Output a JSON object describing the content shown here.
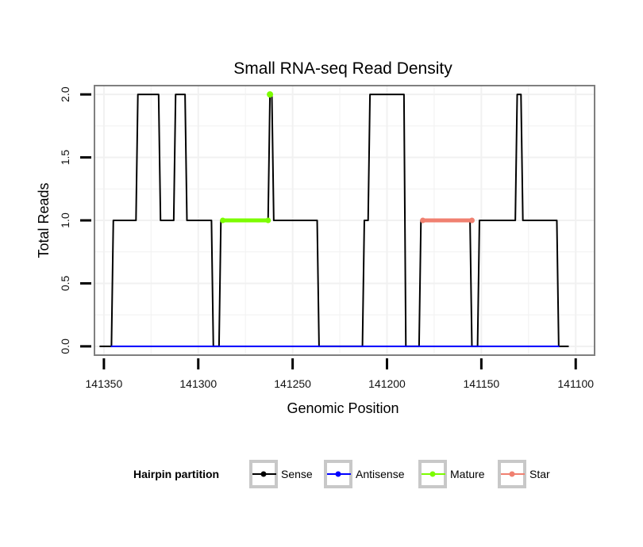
{
  "chart_data": {
    "type": "line",
    "title": "Small RNA-seq Read Density",
    "xlabel": "Genomic Position",
    "ylabel": "Total Reads",
    "xlim": [
      141355,
      141090
    ],
    "ylim": [
      -0.07,
      2.07
    ],
    "x_ticks": [
      141350,
      141300,
      141250,
      141200,
      141150,
      141100
    ],
    "x_tick_labels": [
      "141350",
      "141300",
      "141250",
      "141200",
      "141150",
      "141100"
    ],
    "y_ticks": [
      0,
      0.5,
      1,
      1.5,
      2
    ],
    "y_tick_labels": [
      "0.0",
      "0.5",
      "1.0",
      "1.5",
      "2.0"
    ],
    "grid": true,
    "legend": {
      "title": "Hairpin partition",
      "position": "bottom",
      "entries": [
        "Sense",
        "Antisense",
        "Mature",
        "Star"
      ]
    },
    "series": [
      {
        "name": "Sense",
        "color": "#000000",
        "x": [
          141352,
          141346,
          141345,
          141333,
          141332,
          141321,
          141320,
          141313,
          141312,
          141307,
          141306,
          141293,
          141292,
          141289,
          141288,
          141263,
          141262,
          141261,
          141260,
          141237,
          141236,
          141213,
          141212,
          141210,
          141209,
          141191,
          141190,
          141183,
          141182,
          141156,
          141155,
          141152,
          141151,
          141132,
          141131,
          141129,
          141128,
          141110,
          141109,
          141104
        ],
        "y": [
          0,
          0,
          1,
          1,
          2,
          2,
          1,
          1,
          2,
          2,
          1,
          1,
          0,
          0,
          1,
          1,
          2,
          2,
          1,
          1,
          0,
          0,
          1,
          1,
          2,
          2,
          0,
          0,
          1,
          1,
          0,
          0,
          1,
          1,
          2,
          2,
          1,
          1,
          0,
          0
        ]
      },
      {
        "name": "Antisense",
        "color": "#0000ff",
        "x": [
          141346,
          141109
        ],
        "y": [
          0,
          0
        ]
      },
      {
        "name": "Mature",
        "color": "#7cfc00",
        "x": [
          141287,
          141263
        ],
        "y": [
          1,
          1
        ],
        "extra_points": [
          {
            "x": 141262,
            "y": 2
          }
        ]
      },
      {
        "name": "Star",
        "color": "#f08070",
        "x": [
          141181,
          141155
        ],
        "y": [
          1,
          1
        ]
      }
    ]
  },
  "colors": {
    "grid": "#f1f1f1",
    "border": "#7f7f7f",
    "legend_box": "#c8c8c8"
  }
}
